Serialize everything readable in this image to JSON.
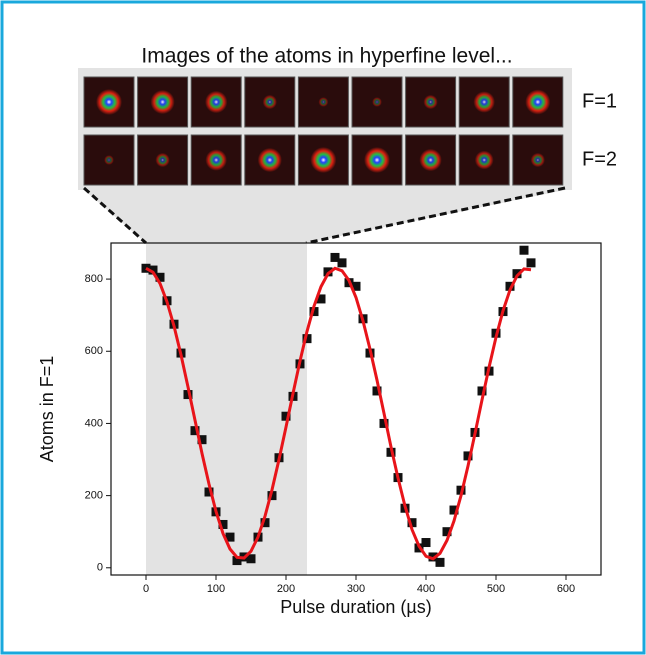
{
  "chart_data": {
    "type": "scatter",
    "title": "Images of the atoms in hyperfine level...",
    "image_labels": [
      "F=1",
      "F=2"
    ],
    "x_label": "Pulse duration (µs)",
    "y_label": "Atoms in F=1",
    "xlim": [
      -50,
      650
    ],
    "ylim": [
      -20,
      900
    ],
    "xticks": [
      0,
      100,
      200,
      300,
      400,
      500,
      600
    ],
    "yticks": [
      0,
      200,
      400,
      600,
      800
    ],
    "shaded_region": [
      0,
      230
    ],
    "shade_color": "#e3e3e3",
    "series": [
      {
        "type": "scatter",
        "color": "#111111",
        "x": [
          0,
          10,
          20,
          30,
          40,
          50,
          60,
          70,
          80,
          90,
          100,
          110,
          120,
          130,
          140,
          150,
          160,
          170,
          180,
          190,
          200,
          210,
          220,
          230,
          240,
          250,
          260,
          270,
          280,
          290,
          300,
          310,
          320,
          330,
          340,
          350,
          360,
          370,
          380,
          390,
          400,
          410,
          420,
          430,
          440,
          450,
          460,
          470,
          480,
          490,
          500,
          510,
          520,
          530,
          540,
          550
        ],
        "values": [
          830,
          825,
          805,
          740,
          675,
          595,
          480,
          380,
          355,
          210,
          155,
          120,
          85,
          20,
          30,
          25,
          85,
          125,
          200,
          305,
          420,
          475,
          565,
          635,
          710,
          745,
          820,
          860,
          845,
          790,
          780,
          690,
          595,
          490,
          400,
          320,
          250,
          165,
          125,
          55,
          70,
          30,
          15,
          100,
          160,
          215,
          310,
          375,
          490,
          545,
          650,
          710,
          780,
          815,
          880,
          845
        ]
      },
      {
        "type": "line",
        "color": "#e8141a",
        "x": [
          0,
          10,
          20,
          30,
          40,
          50,
          60,
          70,
          80,
          90,
          100,
          110,
          120,
          130,
          140,
          150,
          160,
          170,
          180,
          190,
          200,
          210,
          220,
          230,
          240,
          250,
          260,
          270,
          280,
          290,
          300,
          310,
          320,
          330,
          340,
          350,
          360,
          370,
          380,
          390,
          400,
          410,
          420,
          430,
          440,
          450,
          460,
          470,
          480,
          490,
          500,
          510,
          520,
          530,
          540,
          550
        ],
        "values": [
          830,
          819,
          788,
          737,
          670,
          590,
          501,
          409,
          317,
          232,
          156,
          95,
          52,
          29,
          27,
          46,
          85,
          143,
          216,
          300,
          390,
          483,
          573,
          655,
          725,
          779,
          815,
          830,
          823,
          796,
          749,
          684,
          606,
          520,
          428,
          335,
          249,
          171,
          106,
          60,
          32,
          25,
          40,
          76,
          130,
          200,
          282,
          372,
          465,
          555,
          639,
          712,
          770,
          809,
          828,
          826
        ]
      }
    ]
  }
}
